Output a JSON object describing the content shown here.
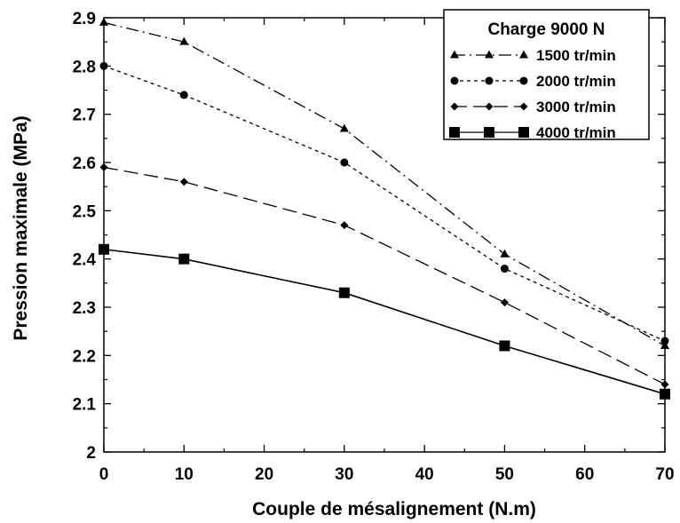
{
  "chart_data": {
    "type": "line",
    "title": "",
    "xlabel": "Couple de mésalignement (N.m)",
    "ylabel": "Pression maximale (MPa)",
    "xlim": [
      0,
      70
    ],
    "ylim": [
      2.0,
      2.9
    ],
    "x_ticks": [
      "0",
      "10",
      "20",
      "30",
      "40",
      "50",
      "60",
      "70"
    ],
    "y_ticks": [
      "2",
      "2.1",
      "2.2",
      "2.3",
      "2.4",
      "2.5",
      "2.6",
      "2.7",
      "2.8",
      "2.9"
    ],
    "grid": false,
    "legend": {
      "title": "Charge 9000 N",
      "position": "top-right"
    },
    "x": [
      0,
      10,
      30,
      50,
      70
    ],
    "series": [
      {
        "name": "1500 tr/min",
        "values": [
          2.89,
          2.85,
          2.67,
          2.41,
          2.22
        ],
        "marker": "triangle-icon",
        "line": "dash-dot"
      },
      {
        "name": "2000 tr/min",
        "values": [
          2.8,
          2.74,
          2.6,
          2.38,
          2.23
        ],
        "marker": "circle-icon",
        "line": "short-dash"
      },
      {
        "name": "3000 tr/min",
        "values": [
          2.59,
          2.56,
          2.47,
          2.31,
          2.14
        ],
        "marker": "diamond-icon",
        "line": "long-dash"
      },
      {
        "name": "4000 tr/min",
        "values": [
          2.42,
          2.4,
          2.33,
          2.22,
          2.12
        ],
        "marker": "square-icon",
        "line": "solid"
      }
    ]
  }
}
